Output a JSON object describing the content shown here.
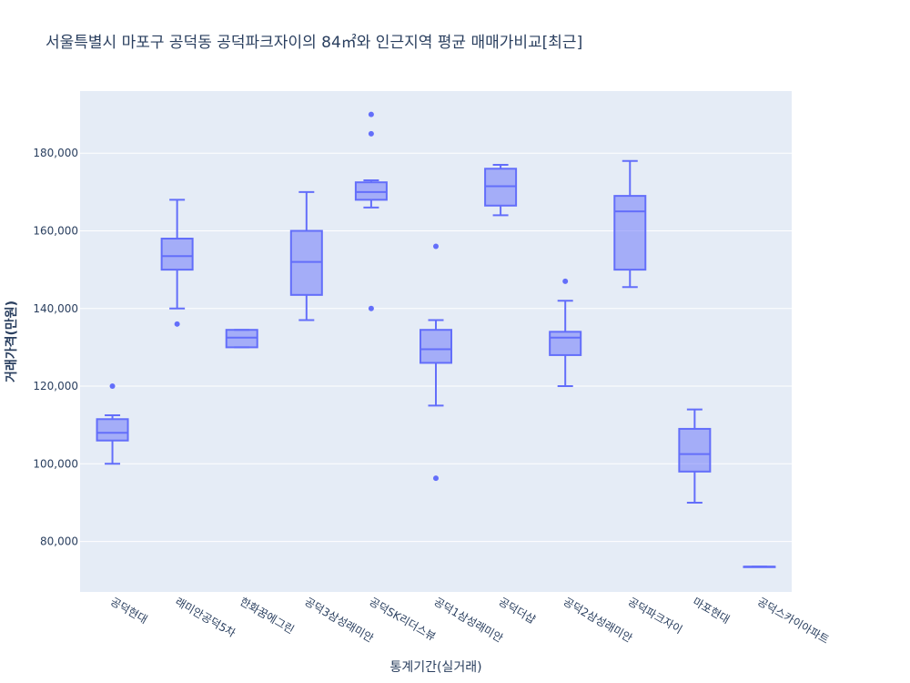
{
  "title": "서울특별시 마포구 공덕동 공덕파크자이의 84㎡와 인근지역 평균 매매가비교[최근]",
  "colors": {
    "box_line": "#636efa",
    "box_fill": "rgba(99,110,250,0.5)",
    "plot_bg": "#e5ecf6",
    "grid": "#ffffff",
    "text": "#2a3f5f"
  },
  "chart_data": {
    "type": "box",
    "title": "서울특별시 마포구 공덕동 공덕파크자이의 84㎡와 인근지역 평균 매매가비교[최근]",
    "xlabel": "통계기간(실거래)",
    "ylabel": "거래가격(만원)",
    "ylim": [
      67000,
      196000
    ],
    "yticks": [
      80000,
      100000,
      120000,
      140000,
      160000,
      180000
    ],
    "ytick_labels": [
      "80,000",
      "100,000",
      "120,000",
      "140,000",
      "160,000",
      "180,000"
    ],
    "grid": true,
    "categories": [
      "공덕현대",
      "래미안공덕5차",
      "한화꿈에그린",
      "공덕3삼성래미안",
      "공덕SK리더스뷰",
      "공덕1삼성래미안",
      "공덕더샵",
      "공덕2삼성래미안",
      "공덕파크자이",
      "마포현대",
      "공덕스카이아파트"
    ],
    "boxes": [
      {
        "name": "공덕현대",
        "min": 100000,
        "q1": 106000,
        "median": 108000,
        "q3": 111500,
        "max": 112500,
        "outliers": [
          120000
        ]
      },
      {
        "name": "래미안공덕5차",
        "min": 140000,
        "q1": 150000,
        "median": 153500,
        "q3": 158000,
        "max": 168000,
        "outliers": [
          136000
        ]
      },
      {
        "name": "한화꿈에그린",
        "min": 130000,
        "q1": 130000,
        "median": 132500,
        "q3": 134500,
        "max": 134500,
        "outliers": []
      },
      {
        "name": "공덕3삼성래미안",
        "min": 137000,
        "q1": 143500,
        "median": 152000,
        "q3": 160000,
        "max": 170000,
        "outliers": []
      },
      {
        "name": "공덕SK리더스뷰",
        "min": 166000,
        "q1": 168000,
        "median": 170000,
        "q3": 172500,
        "max": 173000,
        "outliers": [
          140000,
          185000,
          190000
        ]
      },
      {
        "name": "공덕1삼성래미안",
        "min": 115000,
        "q1": 126000,
        "median": 129500,
        "q3": 134500,
        "max": 137000,
        "outliers": [
          96300,
          156000
        ]
      },
      {
        "name": "공덕더샵",
        "min": 164000,
        "q1": 166500,
        "median": 171500,
        "q3": 176000,
        "max": 177000,
        "outliers": []
      },
      {
        "name": "공덕2삼성래미안",
        "min": 120000,
        "q1": 128000,
        "median": 132500,
        "q3": 134000,
        "max": 142000,
        "outliers": [
          147000
        ]
      },
      {
        "name": "공덕파크자이",
        "min": 145500,
        "q1": 150000,
        "median": 165000,
        "q3": 169000,
        "max": 178000,
        "outliers": []
      },
      {
        "name": "마포현대",
        "min": 90000,
        "q1": 98000,
        "median": 102500,
        "q3": 109000,
        "max": 114000,
        "outliers": []
      },
      {
        "name": "공덕스카이아파트",
        "min": 73500,
        "q1": 73500,
        "median": 73500,
        "q3": 73500,
        "max": 73500,
        "outliers": []
      }
    ]
  }
}
